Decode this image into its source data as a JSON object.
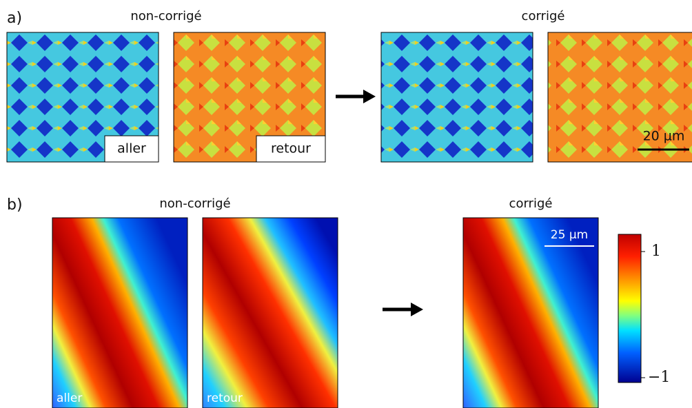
{
  "panel_a": {
    "label": "a)",
    "group_left": "non-corrigé",
    "group_right": "corrigé",
    "tags": [
      "aller",
      "retour"
    ],
    "scale_bar": "20 µm"
  },
  "panel_b": {
    "label": "b)",
    "group_left": "non-corrigé",
    "group_right": "corrigé",
    "tags": [
      "aller",
      "retour"
    ],
    "scale_bar": "25 µm",
    "colorbar_ticks": [
      "1",
      "−1"
    ]
  }
}
